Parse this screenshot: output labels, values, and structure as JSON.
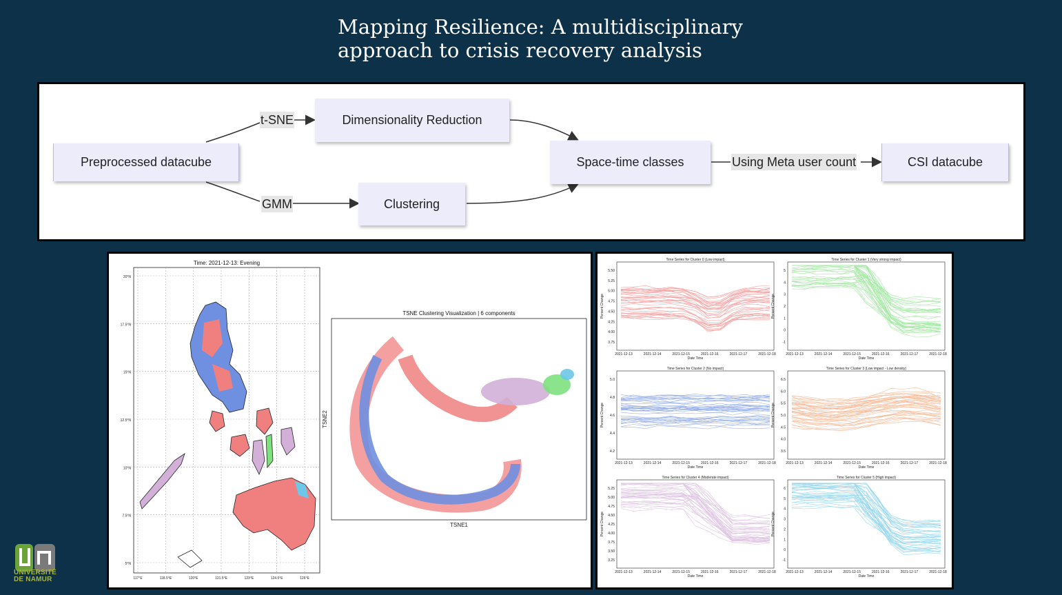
{
  "header": {
    "title_line1": "Mapping Resilience: A multidisciplinary",
    "title_line2": "approach to crisis recovery analysis"
  },
  "flow": {
    "nodes": {
      "preprocessed": "Preprocessed datacube",
      "dimred": "Dimensionality Reduction",
      "clustering": "Clustering",
      "spacetime": "Space-time classes",
      "csi": "CSI datacube"
    },
    "edges": {
      "tsne": "t-SNE",
      "gmm": "GMM",
      "meta": "Using Meta user count"
    }
  },
  "map": {
    "title": "Time: 2021-12-13: Evening",
    "lat_ticks": [
      "20°N",
      "17.5°N",
      "15°N",
      "12.5°N",
      "10°N",
      "7.5°N",
      "5°N"
    ],
    "lon_ticks": [
      "117°E",
      "118.5°E",
      "120°E",
      "121.5°E",
      "123°E",
      "124.5°E",
      "126°E"
    ]
  },
  "tsne": {
    "title": "TSNE Clustering Visualization | 6 components",
    "xlabel": "TSNE1",
    "ylabel": "TSNE2"
  },
  "timeseries": {
    "date_ticks": [
      "2021-12-13",
      "2021-12-14",
      "2021-12-15",
      "2021-12-16",
      "2021-12-17",
      "2021-12-18"
    ],
    "xlabel": "Date Time",
    "ylabel": "Percent Change",
    "panels": [
      {
        "title": "Time Series for Cluster 0 (Low impact)",
        "color": "#f08080",
        "yticks": [
          "5.50",
          "5.25",
          "5.00",
          "4.75",
          "4.50",
          "4.25",
          "4.00",
          "3.75"
        ]
      },
      {
        "title": "Time Series for Cluster 1 (Very strong impact)",
        "color": "#7ee07e",
        "yticks": [
          "5",
          "4",
          "3",
          "2",
          "1",
          "0",
          "-1"
        ]
      },
      {
        "title": "Time Series for Cluster 2 (No impact)",
        "color": "#6f8fe0",
        "yticks": [
          "5.0",
          "4.8",
          "4.6",
          "4.4",
          "4.2"
        ]
      },
      {
        "title": "Time Series for Cluster 3 (Low impact - Low density)",
        "color": "#f4a070",
        "yticks": [
          "6.5",
          "6.0",
          "5.5",
          "5.0",
          "4.5",
          "4.0",
          "3.5"
        ]
      },
      {
        "title": "Time Series for Cluster 4 (Moderate impact)",
        "color": "#d2b0d8",
        "yticks": [
          "5.25",
          "5.00",
          "4.75",
          "4.50",
          "4.25",
          "4.00",
          "3.75",
          "3.50",
          "3.25"
        ]
      },
      {
        "title": "Time Series for Cluster 5 (High impact)",
        "color": "#6cc8e8",
        "yticks": [
          "6",
          "5",
          "4",
          "3",
          "2",
          "1",
          "0",
          "-1"
        ]
      }
    ]
  },
  "logo": {
    "line1": "UNIVERSITÉ",
    "line2": "DE NAMUR"
  }
}
